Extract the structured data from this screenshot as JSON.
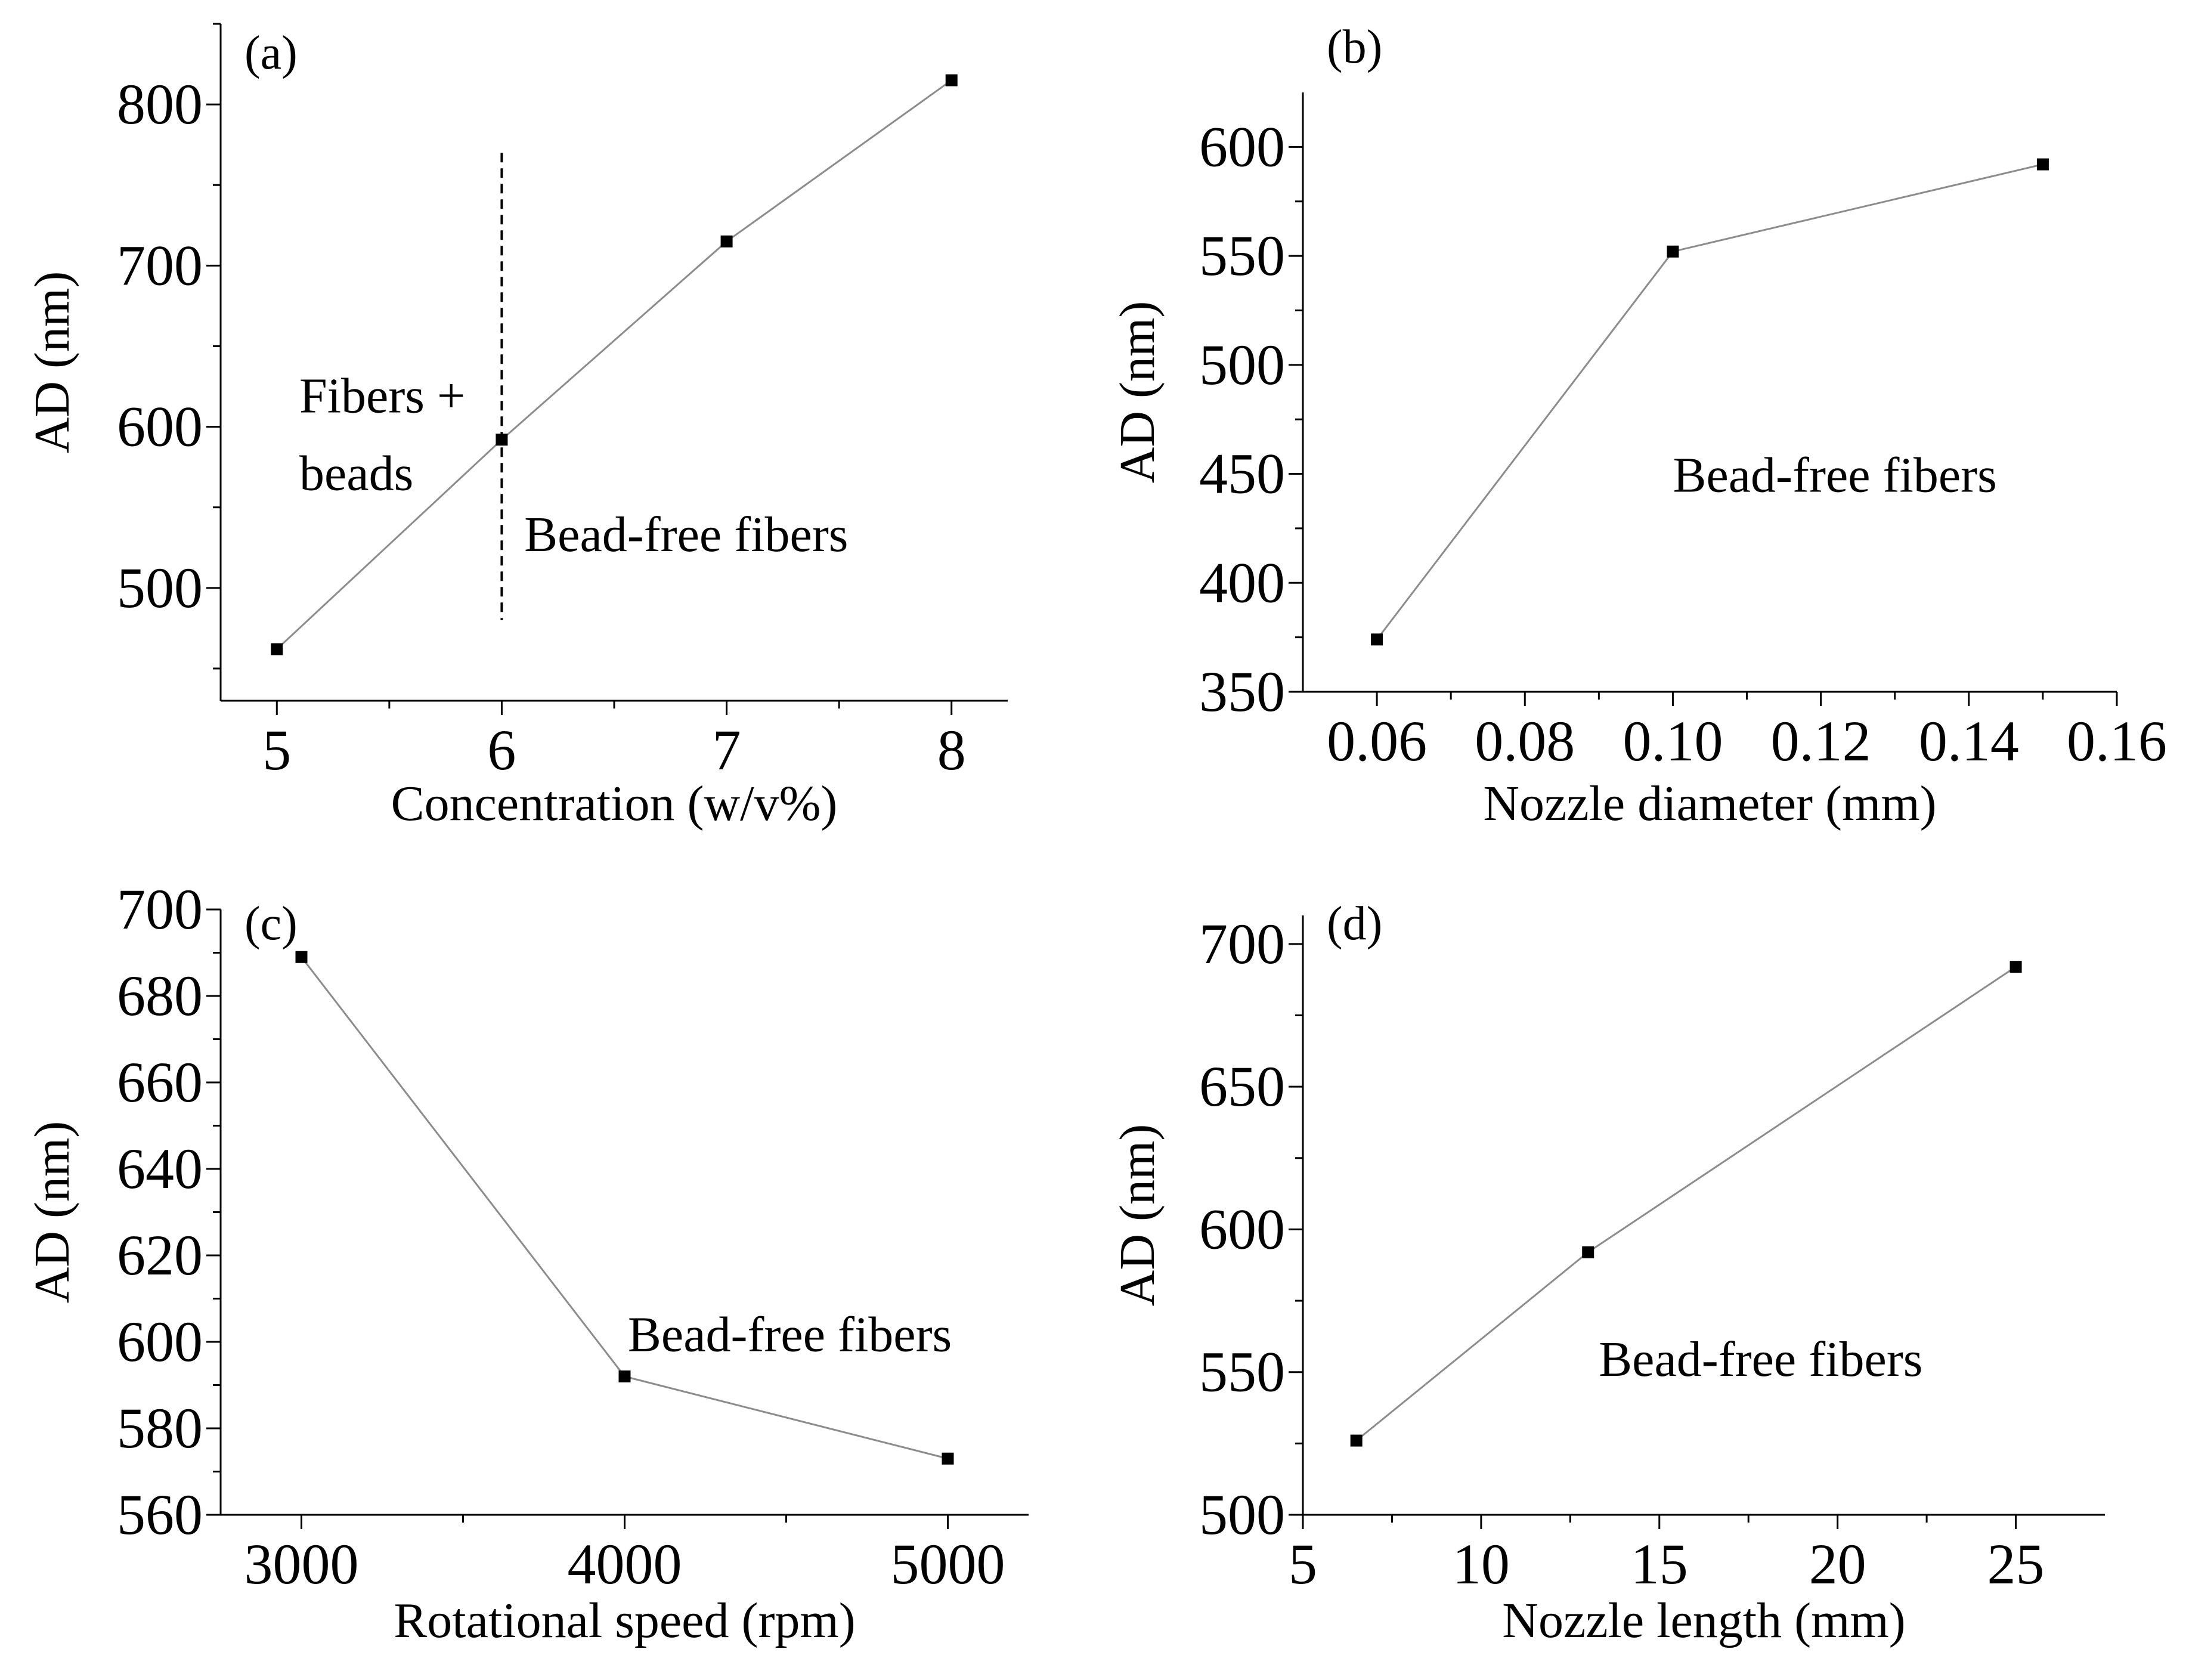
{
  "colors": {
    "line": "#8c8c8c",
    "marker": "#000000",
    "axis": "#000000"
  },
  "chart_data": [
    {
      "id": "a",
      "type": "line",
      "panel_label": "(a)",
      "xlabel": "Concentration (w/v%)",
      "ylabel": "AD (nm)",
      "xlim": [
        4.75,
        8.25
      ],
      "ylim": [
        430,
        850
      ],
      "xticks": [
        5,
        6,
        7,
        8
      ],
      "xtick_labels": [
        "5",
        "6",
        "7",
        "8"
      ],
      "xminor": [
        5.5,
        6.5,
        7.5
      ],
      "yticks": [
        500,
        600,
        700,
        800
      ],
      "ytick_labels": [
        "500",
        "600",
        "700",
        "800"
      ],
      "yminor": [
        450,
        550,
        650,
        750,
        850
      ],
      "x": [
        5,
        6,
        7,
        8
      ],
      "y": [
        462,
        592,
        715,
        815
      ],
      "vline": {
        "x": 6,
        "y": [
          480,
          770
        ]
      },
      "annotations": [
        {
          "lines": [
            "Fibers +",
            "beads"
          ],
          "x": 5.1,
          "y": [
            620,
            572
          ]
        },
        {
          "lines": [
            "Bead-free fibers"
          ],
          "x": 6.1,
          "y": [
            534
          ]
        }
      ]
    },
    {
      "id": "b",
      "type": "line",
      "panel_label": "(b)",
      "xlabel": "Nozzle diameter (mm)",
      "ylabel": "AD (nm)",
      "xlim": [
        0.05,
        0.16
      ],
      "ylim": [
        350,
        625
      ],
      "xticks": [
        0.06,
        0.08,
        0.1,
        0.12,
        0.14,
        0.16
      ],
      "xtick_labels": [
        "0.06",
        "0.08",
        "0.10",
        "0.12",
        "0.14",
        "0.16"
      ],
      "xminor": [
        0.07,
        0.09,
        0.11,
        0.13,
        0.15
      ],
      "yticks": [
        350,
        400,
        450,
        500,
        550,
        600
      ],
      "ytick_labels": [
        "350",
        "400",
        "450",
        "500",
        "550",
        "600"
      ],
      "yminor": [
        375,
        425,
        475,
        525,
        575
      ],
      "x": [
        0.06,
        0.1,
        0.15
      ],
      "y": [
        374,
        552,
        592
      ],
      "annotations": [
        {
          "lines": [
            "Bead-free fibers"
          ],
          "x": 0.1,
          "y": [
            450
          ]
        }
      ]
    },
    {
      "id": "c",
      "type": "line",
      "panel_label": "(c)",
      "xlabel": "Rotational speed (rpm)",
      "ylabel": "AD (nm)",
      "xlim": [
        2750,
        5250
      ],
      "ylim": [
        560,
        700
      ],
      "xticks": [
        3000,
        4000,
        5000
      ],
      "xtick_labels": [
        "3000",
        "4000",
        "5000"
      ],
      "xminor": [
        3500,
        4500
      ],
      "yticks": [
        560,
        580,
        600,
        620,
        640,
        660,
        680,
        700
      ],
      "ytick_labels": [
        "560",
        "580",
        "600",
        "620",
        "640",
        "660",
        "680",
        "700"
      ],
      "yminor": [
        570,
        590,
        610,
        630,
        650,
        670,
        690
      ],
      "x": [
        3000,
        4000,
        5000
      ],
      "y": [
        689,
        592,
        573
      ],
      "annotations": [
        {
          "lines": [
            "Bead-free fibers"
          ],
          "x": 4010,
          "y": [
            602
          ]
        }
      ]
    },
    {
      "id": "d",
      "type": "line",
      "panel_label": "(d)",
      "xlabel": "Nozzle length (mm)",
      "ylabel": "AD (nm)",
      "xlim": [
        5,
        27.5
      ],
      "ylim": [
        500,
        710
      ],
      "xticks": [
        5,
        10,
        15,
        20,
        25
      ],
      "xtick_labels": [
        "5",
        "10",
        "15",
        "20",
        "25"
      ],
      "xminor": [
        7.5,
        12.5,
        17.5,
        22.5
      ],
      "yticks": [
        500,
        550,
        600,
        650,
        700
      ],
      "ytick_labels": [
        "500",
        "550",
        "600",
        "650",
        "700"
      ],
      "yminor": [
        525,
        575,
        625,
        675
      ],
      "x": [
        6.5,
        13,
        25
      ],
      "y": [
        526,
        592,
        692
      ],
      "annotations": [
        {
          "lines": [
            "Bead-free fibers"
          ],
          "x": 13.3,
          "y": [
            555
          ]
        }
      ]
    }
  ]
}
